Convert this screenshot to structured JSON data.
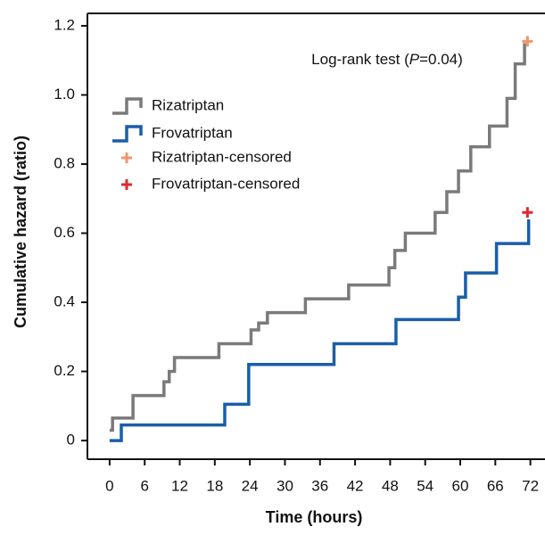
{
  "chart_data": {
    "type": "line",
    "step": true,
    "x_label": "Time (hours)",
    "y_label": "Cumulative hazard (ratio)",
    "annotation": [
      "Log-rank test (",
      "P",
      "=0.04)"
    ],
    "xlim": [
      -3.8,
      74.5
    ],
    "ylim": [
      -0.054,
      1.236
    ],
    "xticks": [
      0,
      6,
      12,
      18,
      24,
      30,
      36,
      42,
      48,
      54,
      60,
      66,
      72
    ],
    "yticks": [
      0,
      0.2,
      0.4,
      0.6,
      0.8,
      {
        "value": 1,
        "label": "1.0"
      },
      1.2
    ],
    "legend": "upper left",
    "series": [
      {
        "name": "Rizatriptan",
        "color": "#7a7a7a",
        "kind": "line",
        "x": [
          0,
          0.5,
          4,
          8,
          9.3,
          10.2,
          11.1,
          18.7,
          24.2,
          25.5,
          27,
          33.5,
          40.9,
          47.8,
          48.8,
          50.6,
          55.7,
          57.7,
          59.7,
          61.8,
          65,
          68,
          69.4,
          71
        ],
        "values": [
          0.03,
          0.065,
          0.13,
          0.13,
          0.17,
          0.2,
          0.24,
          0.28,
          0.32,
          0.34,
          0.37,
          0.41,
          0.45,
          0.5,
          0.55,
          0.6,
          0.66,
          0.72,
          0.78,
          0.85,
          0.91,
          0.99,
          1.09,
          1.15
        ]
      },
      {
        "name": "Frovatriptan",
        "color": "#1a5ea8",
        "kind": "line",
        "x": [
          0,
          2,
          19.7,
          23.8,
          38.4,
          49,
          59.7,
          60.9,
          66.2,
          71.7
        ],
        "values": [
          0,
          0.045,
          0.105,
          0.22,
          0.28,
          0.35,
          0.415,
          0.485,
          0.57,
          0.64
        ]
      },
      {
        "name": "Rizatriptan-censored",
        "color": "#f0956a",
        "kind": "scatter",
        "x": [
          71.5
        ],
        "values": [
          1.155
        ]
      },
      {
        "name": "Frovatriptan-censored",
        "color": "#e0282e",
        "kind": "scatter",
        "x": [
          71.5
        ],
        "values": [
          0.66
        ]
      }
    ]
  }
}
